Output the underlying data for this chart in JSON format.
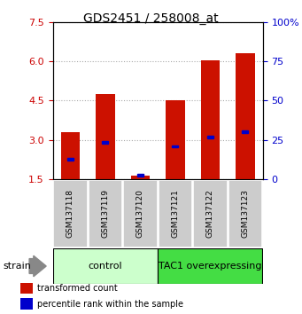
{
  "title": "GDS2451 / 258008_at",
  "samples": [
    "GSM137118",
    "GSM137119",
    "GSM137120",
    "GSM137121",
    "GSM137122",
    "GSM137123"
  ],
  "red_values": [
    3.3,
    4.75,
    1.62,
    4.5,
    6.05,
    6.3
  ],
  "blue_values": [
    2.25,
    2.9,
    1.65,
    2.75,
    3.1,
    3.3
  ],
  "y_min": 1.5,
  "y_max": 7.5,
  "y_ticks": [
    1.5,
    3.0,
    4.5,
    6.0,
    7.5
  ],
  "y_right_ticks": [
    0,
    25,
    50,
    75,
    100
  ],
  "y_right_labels": [
    "0",
    "25",
    "50",
    "75",
    "100%"
  ],
  "left_axis_color": "#cc0000",
  "right_axis_color": "#0000cc",
  "bar_color": "#cc1100",
  "blue_marker_color": "#0000cc",
  "control_label": "control",
  "tac1_label": "TAC1 overexpressing",
  "control_bg": "#ccffcc",
  "tac1_bg": "#44dd44",
  "strain_label": "strain",
  "legend_red": "transformed count",
  "legend_blue": "percentile rank within the sample",
  "grid_color": "#aaaaaa",
  "bar_width": 0.55
}
